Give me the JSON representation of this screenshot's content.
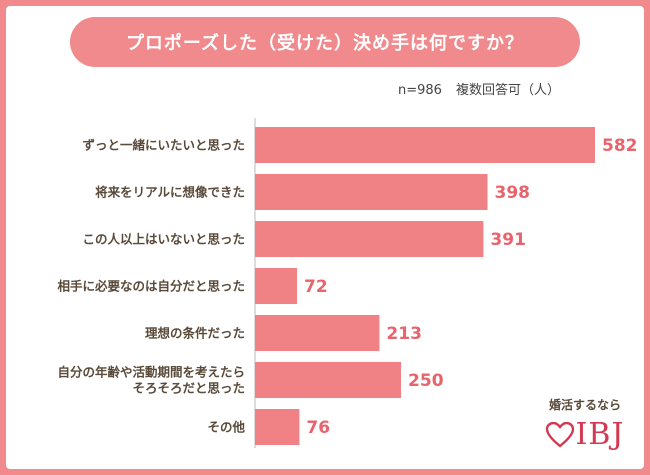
{
  "header": {
    "title": "プロポーズした（受けた）決め手は何ですか？",
    "sample_size": "n=986",
    "answer_type": "複数回答可（人）"
  },
  "brand": {
    "tagline": "婚活するなら",
    "logo_text": "IBJ",
    "logo_color": "#d33a52"
  },
  "colors": {
    "background": "#f08a8d",
    "bar": "#f08184",
    "value_text": "#e8636b",
    "label_text": "#5a4a3a"
  },
  "chart_data": {
    "type": "bar",
    "orientation": "horizontal",
    "title": "プロポーズした（受けた）決め手は何ですか？",
    "categories": [
      "ずっと一緒にいたいと思った",
      "将来をリアルに想像できた",
      "この人以上はいないと思った",
      "相手に必要なのは自分だと思った",
      "理想の条件だった",
      "自分の年齢や活動期間を考えたら\nそろそろだと思った",
      "その他"
    ],
    "values": [
      582,
      398,
      391,
      72,
      213,
      250,
      76
    ],
    "xlim": [
      0,
      582
    ],
    "grid": false,
    "legend": "none"
  }
}
